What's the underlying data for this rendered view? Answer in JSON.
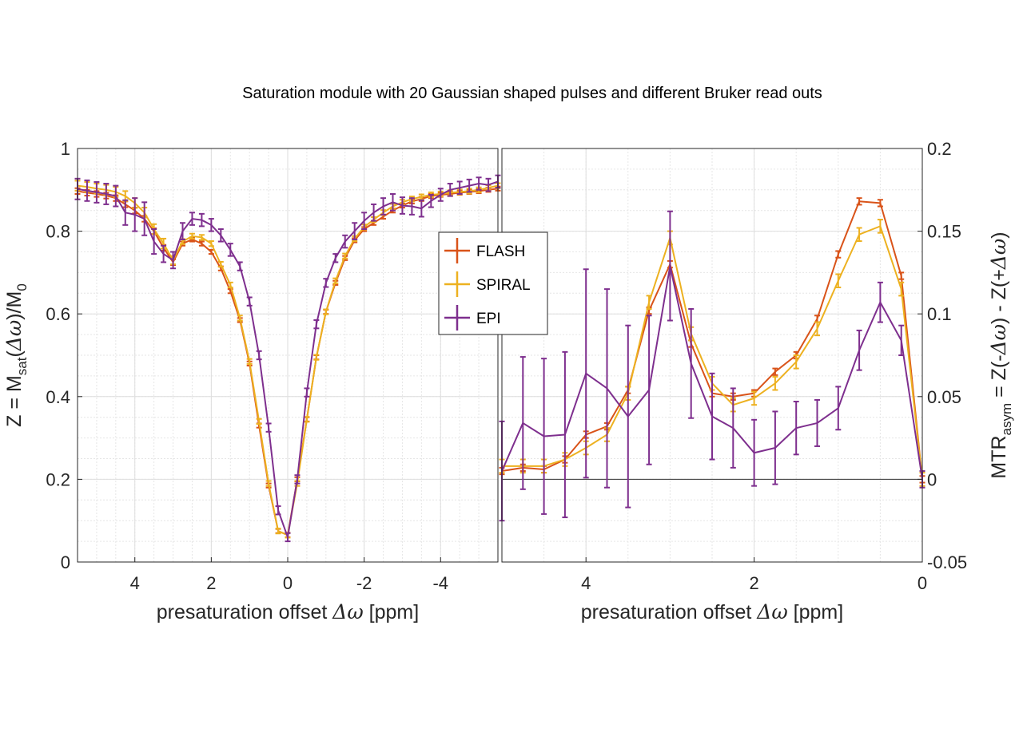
{
  "title": "Saturation module with 20 Gaussian shaped pulses and different Bruker read outs",
  "legend": {
    "position": "center",
    "entries": [
      {
        "name": "FLASH",
        "color": "#D95319"
      },
      {
        "name": "SPIRAL",
        "color": "#EDB120"
      },
      {
        "name": "EPI",
        "color": "#7E2F8E"
      }
    ]
  },
  "chart_data": [
    {
      "type": "line",
      "panel": "left",
      "title": "Saturation module with 20 Gaussian shaped pulses and different Bruker read outs",
      "xlabel_parts": {
        "pre": "presaturation offset ",
        "sym": "Δω",
        "post": " [ppm]"
      },
      "ylabel_parts": {
        "pre": "Z = M",
        "sub1": "sat",
        "mid": "(",
        "sym": "Δω",
        "post": ")/M",
        "sub2": "0"
      },
      "xlim": [
        5.5,
        -5.5
      ],
      "ylim": [
        0,
        1
      ],
      "xticks": [
        4,
        2,
        0,
        -2,
        -4
      ],
      "xtick_labels": [
        "4",
        "2",
        "0",
        "-2",
        "-4"
      ],
      "yticks": [
        0,
        0.2,
        0.4,
        0.6,
        0.8,
        1
      ],
      "ytick_labels": [
        "0",
        "0.2",
        "0.4",
        "0.6",
        "0.8",
        "1"
      ],
      "grid": true,
      "x": [
        5.5,
        5.25,
        5.0,
        4.75,
        4.5,
        4.25,
        4.0,
        3.75,
        3.5,
        3.25,
        3.0,
        2.75,
        2.5,
        2.25,
        2.0,
        1.75,
        1.5,
        1.25,
        1.0,
        0.75,
        0.5,
        0.25,
        0.0,
        -0.25,
        -0.5,
        -0.75,
        -1.0,
        -1.25,
        -1.5,
        -1.75,
        -2.0,
        -2.25,
        -2.5,
        -2.75,
        -3.0,
        -3.25,
        -3.5,
        -3.75,
        -4.0,
        -4.25,
        -4.5,
        -4.75,
        -5.0,
        -5.25,
        -5.5
      ],
      "series": [
        {
          "name": "FLASH",
          "color": "#D95319",
          "values": [
            0.897,
            0.893,
            0.89,
            0.886,
            0.88,
            0.865,
            0.85,
            0.83,
            0.8,
            0.76,
            0.725,
            0.77,
            0.78,
            0.77,
            0.75,
            0.71,
            0.655,
            0.585,
            0.48,
            0.33,
            0.185,
            0.075,
            0.065,
            0.2,
            0.345,
            0.495,
            0.605,
            0.675,
            0.735,
            0.778,
            0.805,
            0.82,
            0.835,
            0.85,
            0.862,
            0.872,
            0.878,
            0.885,
            0.888,
            0.89,
            0.893,
            0.895,
            0.897,
            0.9,
            0.903
          ],
          "errors": [
            0.007,
            0.007,
            0.007,
            0.007,
            0.007,
            0.007,
            0.007,
            0.007,
            0.007,
            0.007,
            0.007,
            0.005,
            0.005,
            0.005,
            0.005,
            0.005,
            0.005,
            0.005,
            0.005,
            0.005,
            0.005,
            0.005,
            0.005,
            0.005,
            0.005,
            0.005,
            0.005,
            0.005,
            0.005,
            0.005,
            0.005,
            0.005,
            0.005,
            0.005,
            0.005,
            0.005,
            0.005,
            0.005,
            0.005,
            0.005,
            0.005,
            0.005,
            0.005,
            0.005,
            0.005
          ]
        },
        {
          "name": "SPIRAL",
          "color": "#EDB120",
          "values": [
            0.91,
            0.907,
            0.903,
            0.9,
            0.895,
            0.885,
            0.868,
            0.845,
            0.805,
            0.77,
            0.73,
            0.775,
            0.788,
            0.785,
            0.77,
            0.72,
            0.67,
            0.59,
            0.485,
            0.34,
            0.19,
            0.075,
            0.065,
            0.19,
            0.345,
            0.495,
            0.605,
            0.68,
            0.74,
            0.782,
            0.81,
            0.828,
            0.845,
            0.86,
            0.87,
            0.878,
            0.883,
            0.888,
            0.89,
            0.893,
            0.895,
            0.897,
            0.9,
            0.905,
            0.91
          ],
          "errors": [
            0.012,
            0.012,
            0.012,
            0.012,
            0.012,
            0.012,
            0.012,
            0.012,
            0.012,
            0.012,
            0.01,
            0.006,
            0.006,
            0.006,
            0.006,
            0.006,
            0.006,
            0.006,
            0.006,
            0.006,
            0.006,
            0.006,
            0.006,
            0.006,
            0.006,
            0.006,
            0.006,
            0.006,
            0.006,
            0.006,
            0.006,
            0.006,
            0.006,
            0.006,
            0.006,
            0.006,
            0.006,
            0.006,
            0.006,
            0.006,
            0.006,
            0.006,
            0.006,
            0.006,
            0.006
          ]
        },
        {
          "name": "EPI",
          "color": "#7E2F8E",
          "values": [
            0.902,
            0.898,
            0.894,
            0.89,
            0.885,
            0.845,
            0.84,
            0.83,
            0.775,
            0.745,
            0.73,
            0.8,
            0.83,
            0.827,
            0.815,
            0.79,
            0.755,
            0.715,
            0.63,
            0.5,
            0.325,
            0.125,
            0.06,
            0.2,
            0.41,
            0.575,
            0.675,
            0.735,
            0.775,
            0.8,
            0.825,
            0.845,
            0.86,
            0.87,
            0.862,
            0.86,
            0.855,
            0.873,
            0.888,
            0.9,
            0.905,
            0.91,
            0.915,
            0.912,
            0.92
          ],
          "errors": [
            0.025,
            0.025,
            0.025,
            0.025,
            0.025,
            0.03,
            0.04,
            0.04,
            0.03,
            0.02,
            0.02,
            0.02,
            0.015,
            0.015,
            0.015,
            0.015,
            0.015,
            0.01,
            0.01,
            0.01,
            0.01,
            0.01,
            0.01,
            0.01,
            0.01,
            0.01,
            0.01,
            0.01,
            0.015,
            0.02,
            0.02,
            0.02,
            0.02,
            0.02,
            0.02,
            0.02,
            0.02,
            0.015,
            0.015,
            0.015,
            0.015,
            0.015,
            0.015,
            0.015,
            0.015
          ]
        }
      ]
    },
    {
      "type": "line",
      "panel": "right",
      "xlabel_parts": {
        "pre": "presaturation offset ",
        "sym": "Δω",
        "post": " [ppm]"
      },
      "ylabel_parts": {
        "pre": "MTR",
        "sub1": "asym",
        "mid": " = Z(-",
        "sym": "Δω",
        "mid2": ") - Z(+",
        "sym2": "Δω",
        "post": ")"
      },
      "xlim": [
        5.0,
        0
      ],
      "ylim": [
        -0.05,
        0.2
      ],
      "xticks": [
        4,
        2,
        0
      ],
      "xtick_labels": [
        "4",
        "2",
        "0"
      ],
      "yticks": [
        -0.05,
        0,
        0.05,
        0.1,
        0.15,
        0.2
      ],
      "ytick_labels": [
        "-0.05",
        "0",
        "0.05",
        "0.1",
        "0.15",
        "0.2"
      ],
      "grid": true,
      "zero_line": 0,
      "x": [
        5.0,
        4.75,
        4.5,
        4.25,
        4.0,
        3.75,
        3.5,
        3.25,
        3.0,
        2.75,
        2.5,
        2.25,
        2.0,
        1.75,
        1.5,
        1.25,
        1.0,
        0.75,
        0.5,
        0.25,
        0.0
      ],
      "series": [
        {
          "name": "FLASH",
          "color": "#D95319",
          "values": [
            0.005,
            0.007,
            0.006,
            0.012,
            0.027,
            0.032,
            0.054,
            0.102,
            0.13,
            0.082,
            0.052,
            0.05,
            0.052,
            0.065,
            0.075,
            0.097,
            0.136,
            0.168,
            0.167,
            0.123,
            0.0
          ],
          "errors": [
            0.002,
            0.002,
            0.002,
            0.002,
            0.002,
            0.002,
            0.002,
            0.002,
            0.002,
            0.002,
            0.002,
            0.002,
            0.002,
            0.002,
            0.002,
            0.002,
            0.002,
            0.002,
            0.002,
            0.002,
            0.002
          ]
        },
        {
          "name": "SPIRAL",
          "color": "#EDB120",
          "values": [
            0.008,
            0.008,
            0.008,
            0.012,
            0.019,
            0.027,
            0.052,
            0.107,
            0.146,
            0.088,
            0.058,
            0.045,
            0.049,
            0.058,
            0.071,
            0.091,
            0.12,
            0.148,
            0.153,
            0.115,
            0.0
          ],
          "errors": [
            0.004,
            0.004,
            0.004,
            0.004,
            0.004,
            0.004,
            0.004,
            0.004,
            0.004,
            0.004,
            0.004,
            0.004,
            0.004,
            0.004,
            0.004,
            0.004,
            0.004,
            0.004,
            0.004,
            0.004,
            0.004
          ]
        },
        {
          "name": "EPI",
          "color": "#7E2F8E",
          "values": [
            0.005,
            0.034,
            0.026,
            0.027,
            0.064,
            0.055,
            0.038,
            0.054,
            0.129,
            0.07,
            0.038,
            0.031,
            0.016,
            0.019,
            0.031,
            0.034,
            0.043,
            0.078,
            0.107,
            0.084,
            0.0
          ],
          "errors": [
            0.03,
            0.04,
            0.047,
            0.05,
            0.063,
            0.06,
            0.055,
            0.045,
            0.033,
            0.033,
            0.026,
            0.024,
            0.02,
            0.022,
            0.016,
            0.014,
            0.013,
            0.012,
            0.012,
            0.009,
            0.005
          ]
        }
      ]
    }
  ]
}
